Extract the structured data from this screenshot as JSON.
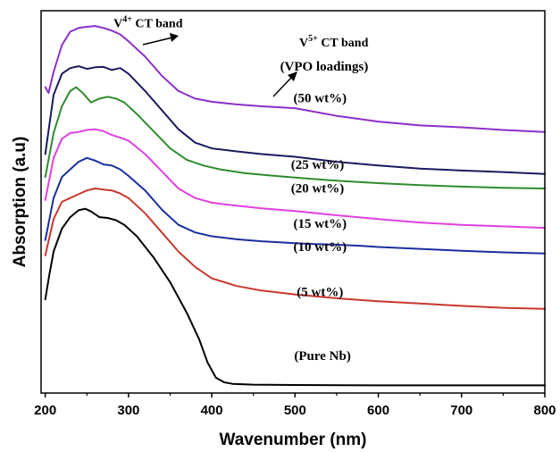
{
  "chart_data": {
    "type": "line",
    "xlabel": "Wavenumber (nm)",
    "ylabel": "Absorption (a.u)",
    "xlim": [
      195,
      800
    ],
    "ylim": [
      0,
      1
    ],
    "x_ticks": [
      200,
      300,
      400,
      500,
      600,
      700,
      800
    ],
    "y_ticks_shown": false,
    "grid": false,
    "legend": "none",
    "legend_title": "(VPO loadings)",
    "annotations": [
      {
        "prefix": "V",
        "sup": "4+",
        "suffix": " CT band",
        "x": 282,
        "y": 0.957
      },
      {
        "prefix": "V",
        "sup": "5+",
        "suffix": " CT band",
        "x": 505,
        "y": 0.907
      }
    ],
    "series": [
      {
        "name": "(50 wt%)",
        "color": "#8B2FC9",
        "x": [
          200,
          204,
          210,
          220,
          230,
          240,
          250,
          260,
          270,
          280,
          290,
          300,
          320,
          340,
          360,
          380,
          400,
          430,
          460,
          500,
          550,
          600,
          650,
          700,
          750,
          800
        ],
        "y": [
          0.8,
          0.785,
          0.84,
          0.91,
          0.945,
          0.955,
          0.958,
          0.96,
          0.955,
          0.948,
          0.938,
          0.92,
          0.88,
          0.83,
          0.79,
          0.77,
          0.762,
          0.755,
          0.75,
          0.745,
          0.725,
          0.71,
          0.7,
          0.695,
          0.688,
          0.683
        ]
      },
      {
        "name": "(25 wt%)",
        "color": "#1A1A5E",
        "x": [
          200,
          210,
          220,
          230,
          240,
          250,
          260,
          270,
          280,
          290,
          300,
          320,
          340,
          360,
          380,
          400,
          430,
          460,
          500,
          550,
          600,
          650,
          700,
          750,
          800
        ],
        "y": [
          0.625,
          0.78,
          0.835,
          0.85,
          0.855,
          0.848,
          0.852,
          0.853,
          0.845,
          0.85,
          0.835,
          0.79,
          0.74,
          0.69,
          0.655,
          0.64,
          0.632,
          0.625,
          0.618,
          0.605,
          0.595,
          0.587,
          0.582,
          0.578,
          0.573
        ]
      },
      {
        "name": "(20 wt%)",
        "color": "#2E8B2E",
        "x": [
          200,
          210,
          220,
          230,
          237,
          245,
          255,
          265,
          275,
          285,
          295,
          310,
          330,
          350,
          370,
          390,
          410,
          440,
          480,
          520,
          560,
          600,
          650,
          700,
          750,
          800
        ],
        "y": [
          0.565,
          0.68,
          0.75,
          0.79,
          0.8,
          0.785,
          0.76,
          0.77,
          0.775,
          0.77,
          0.76,
          0.73,
          0.685,
          0.64,
          0.61,
          0.595,
          0.585,
          0.575,
          0.567,
          0.56,
          0.554,
          0.549,
          0.544,
          0.54,
          0.537,
          0.535
        ]
      },
      {
        "name": "(15 wt%)",
        "color": "#E040E0",
        "x": [
          200,
          210,
          220,
          230,
          240,
          250,
          260,
          270,
          280,
          290,
          300,
          320,
          340,
          360,
          380,
          400,
          430,
          460,
          500,
          550,
          600,
          650,
          700,
          750,
          800
        ],
        "y": [
          0.505,
          0.615,
          0.665,
          0.68,
          0.683,
          0.688,
          0.69,
          0.685,
          0.675,
          0.668,
          0.66,
          0.625,
          0.58,
          0.535,
          0.51,
          0.498,
          0.49,
          0.483,
          0.476,
          0.465,
          0.455,
          0.446,
          0.44,
          0.436,
          0.432
        ]
      },
      {
        "name": "(10 wt%)",
        "color": "#1A2E9E",
        "x": [
          200,
          210,
          220,
          230,
          240,
          250,
          260,
          270,
          280,
          290,
          300,
          320,
          340,
          360,
          380,
          400,
          430,
          460,
          500,
          520,
          550,
          580,
          600,
          650,
          700,
          750,
          800
        ],
        "y": [
          0.4,
          0.51,
          0.565,
          0.585,
          0.605,
          0.615,
          0.608,
          0.598,
          0.595,
          0.585,
          0.568,
          0.53,
          0.48,
          0.44,
          0.42,
          0.41,
          0.402,
          0.397,
          0.392,
          0.39,
          0.388,
          0.385,
          0.382,
          0.377,
          0.372,
          0.368,
          0.365
        ]
      },
      {
        "name": "(5 wt%)",
        "color": "#C8372D",
        "x": [
          200,
          210,
          220,
          230,
          240,
          250,
          260,
          270,
          280,
          290,
          300,
          320,
          340,
          360,
          380,
          400,
          430,
          460,
          500,
          550,
          600,
          650,
          700,
          750,
          800
        ],
        "y": [
          0.36,
          0.455,
          0.5,
          0.51,
          0.52,
          0.53,
          0.535,
          0.532,
          0.53,
          0.522,
          0.51,
          0.47,
          0.42,
          0.37,
          0.33,
          0.3,
          0.28,
          0.268,
          0.258,
          0.248,
          0.24,
          0.234,
          0.228,
          0.223,
          0.22
        ]
      },
      {
        "name": "(Pure Nb)",
        "color": "#000000",
        "x": [
          200,
          205,
          210,
          220,
          230,
          240,
          248,
          255,
          265,
          275,
          285,
          295,
          310,
          330,
          350,
          370,
          385,
          395,
          405,
          415,
          425,
          450,
          500,
          600,
          700,
          800
        ],
        "y": [
          0.245,
          0.31,
          0.37,
          0.43,
          0.46,
          0.478,
          0.482,
          0.475,
          0.46,
          0.458,
          0.452,
          0.44,
          0.41,
          0.355,
          0.29,
          0.21,
          0.14,
          0.08,
          0.04,
          0.028,
          0.024,
          0.022,
          0.021,
          0.02,
          0.02,
          0.02
        ]
      }
    ],
    "label_positions": [
      {
        "name": "(VPO loadings)",
        "x": 535,
        "y": 0.843
      },
      {
        "name": "(50 wt%)",
        "x": 530,
        "y": 0.761
      },
      {
        "name": "(25 wt%)",
        "x": 527,
        "y": 0.586
      },
      {
        "name": "(20 wt%)",
        "x": 527,
        "y": 0.524
      },
      {
        "name": "(15 wt%)",
        "x": 530,
        "y": 0.432
      },
      {
        "name": "(10 wt%)",
        "x": 530,
        "y": 0.372
      },
      {
        "name": "(5 wt%)",
        "x": 530,
        "y": 0.253
      },
      {
        "name": "(Pure Nb)",
        "x": 533,
        "y": 0.087
      }
    ]
  }
}
